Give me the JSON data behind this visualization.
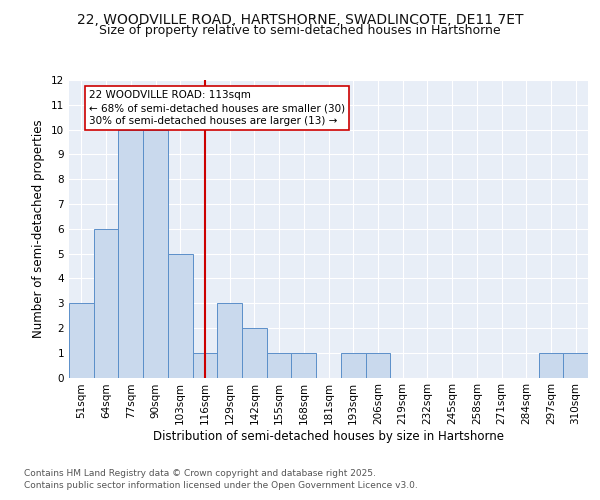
{
  "title_line1": "22, WOODVILLE ROAD, HARTSHORNE, SWADLINCOTE, DE11 7ET",
  "title_line2": "Size of property relative to semi-detached houses in Hartshorne",
  "xlabel": "Distribution of semi-detached houses by size in Hartshorne",
  "ylabel": "Number of semi-detached properties",
  "categories": [
    "51sqm",
    "64sqm",
    "77sqm",
    "90sqm",
    "103sqm",
    "116sqm",
    "129sqm",
    "142sqm",
    "155sqm",
    "168sqm",
    "181sqm",
    "193sqm",
    "206sqm",
    "219sqm",
    "232sqm",
    "245sqm",
    "258sqm",
    "271sqm",
    "284sqm",
    "297sqm",
    "310sqm"
  ],
  "values": [
    3,
    6,
    10,
    10,
    5,
    1,
    3,
    2,
    1,
    1,
    0,
    1,
    1,
    0,
    0,
    0,
    0,
    0,
    0,
    1,
    1
  ],
  "bar_color": "#c9d9ed",
  "bar_edge_color": "#5b8fc9",
  "vline_x_index": 5,
  "vline_color": "#cc0000",
  "annotation_title": "22 WOODVILLE ROAD: 113sqm",
  "annotation_line1": "← 68% of semi-detached houses are smaller (30)",
  "annotation_line2": "30% of semi-detached houses are larger (13) →",
  "annotation_box_color": "#ffffff",
  "annotation_box_edge": "#cc0000",
  "ylim": [
    0,
    12
  ],
  "yticks": [
    0,
    1,
    2,
    3,
    4,
    5,
    6,
    7,
    8,
    9,
    10,
    11,
    12
  ],
  "bg_color": "#e8eef7",
  "footer_line1": "Contains HM Land Registry data © Crown copyright and database right 2025.",
  "footer_line2": "Contains public sector information licensed under the Open Government Licence v3.0.",
  "title_fontsize": 10,
  "subtitle_fontsize": 9,
  "axis_label_fontsize": 8.5,
  "tick_fontsize": 7.5,
  "annotation_fontsize": 7.5,
  "footer_fontsize": 6.5
}
